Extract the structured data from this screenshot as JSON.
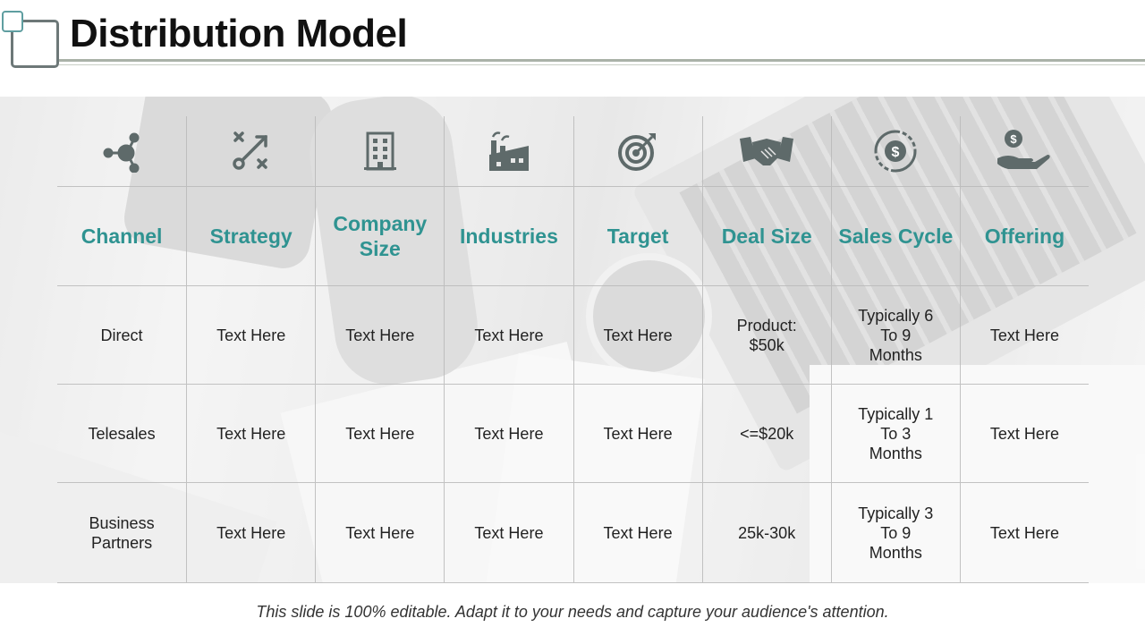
{
  "title": "Distribution Model",
  "colors": {
    "accent": "#2f9391",
    "icon": "#5e6a6a",
    "text": "#222222"
  },
  "columns": [
    {
      "label": "Channel",
      "icon": "share-nodes-icon"
    },
    {
      "label": "Strategy",
      "icon": "strategy-play-icon"
    },
    {
      "label": "Company Size",
      "icon": "office-building-icon"
    },
    {
      "label": "Industries",
      "icon": "factory-icon"
    },
    {
      "label": "Target",
      "icon": "target-icon"
    },
    {
      "label": "Deal Size",
      "icon": "handshake-icon"
    },
    {
      "label": "Sales Cycle",
      "icon": "dollar-cycle-icon"
    },
    {
      "label": "Offering",
      "icon": "hand-coin-icon"
    }
  ],
  "rows": [
    [
      "Direct",
      "Text Here",
      "Text Here",
      "Text Here",
      "Text Here",
      "Product: $50k",
      "Typically 6 To 9 Months",
      "Text Here"
    ],
    [
      "Telesales",
      "Text Here",
      "Text Here",
      "Text Here",
      "Text Here",
      "<=$20k",
      "Typically 1 To 3 Months",
      "Text Here"
    ],
    [
      "Business Partners",
      "Text Here",
      "Text Here",
      "Text Here",
      "Text Here",
      "25k-30k",
      "Typically 3 To 9 Months",
      "Text Here"
    ]
  ],
  "footer": "This slide is 100% editable. Adapt it to your needs and capture your audience's attention."
}
